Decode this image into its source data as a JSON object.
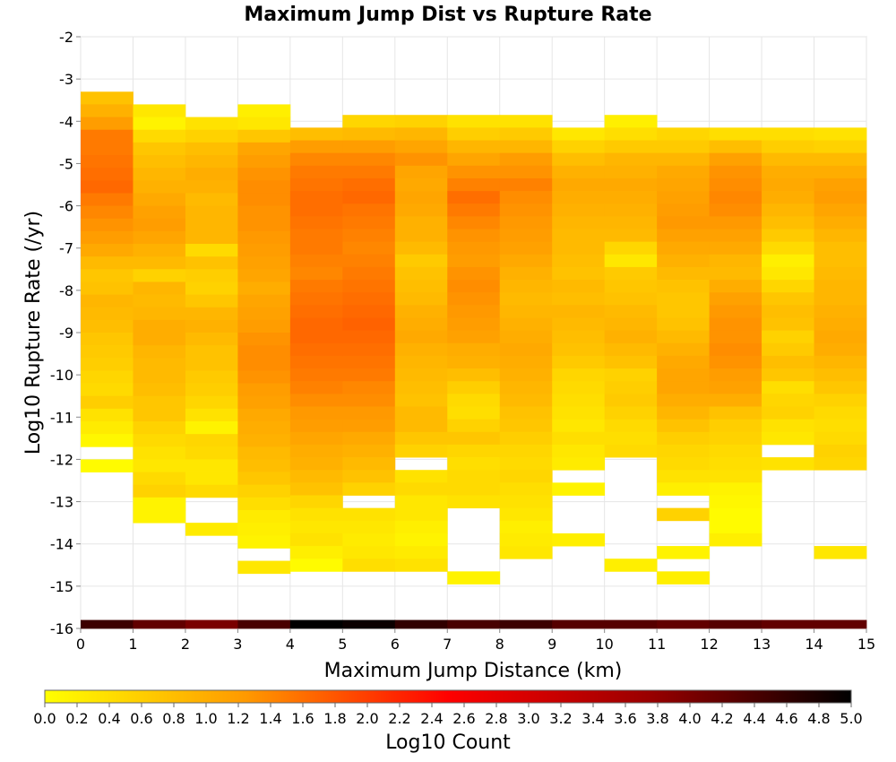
{
  "chart_data": {
    "type": "heatmap",
    "title": "Maximum Jump Dist vs Rupture Rate",
    "xlabel": "Maximum Jump Distance (km)",
    "ylabel": "Log10 Rupture Rate (/yr)",
    "colorbar_label": "Log10 Count",
    "xlim": [
      0,
      15
    ],
    "ylim": [
      -16,
      -2
    ],
    "x_ticks": [
      "0",
      "1",
      "2",
      "3",
      "4",
      "5",
      "6",
      "7",
      "8",
      "9",
      "10",
      "11",
      "12",
      "13",
      "14",
      "15"
    ],
    "y_ticks": [
      "-2",
      "-3",
      "-4",
      "-5",
      "-6",
      "-7",
      "-8",
      "-9",
      "-10",
      "-11",
      "-12",
      "-13",
      "-14",
      "-15",
      "-16"
    ],
    "colorbar_ticks": [
      "0.0",
      "0.2",
      "0.4",
      "0.6",
      "0.8",
      "1.0",
      "1.2",
      "1.4",
      "1.6",
      "1.8",
      "2.0",
      "2.2",
      "2.4",
      "2.6",
      "2.8",
      "3.0",
      "3.2",
      "3.4",
      "3.6",
      "3.8",
      "4.0",
      "4.2",
      "4.4",
      "4.6",
      "4.8",
      "5.0"
    ],
    "color_range": [
      0,
      5
    ],
    "colormap": [
      "#ffff00",
      "#ff9900",
      "#ff0000",
      "#990000",
      "#000000"
    ],
    "x_bin_width_km": 1,
    "y_bin_width": 0.3,
    "columns": [
      {
        "x0": 0,
        "y_top": -3.3,
        "values": [
          0.75,
          0.95,
          1.2,
          1.5,
          1.5,
          1.55,
          1.6,
          1.65,
          1.5,
          1.4,
          1.3,
          1.2,
          1.05,
          0.85,
          0.7,
          0.75,
          0.9,
          0.85,
          0.8,
          0.7,
          0.65,
          0.6,
          0.5,
          0.45,
          0.6,
          0.35,
          0.25,
          0.1,
          null,
          0.05,
          null,
          null,
          null,
          null,
          null,
          null,
          null,
          null,
          null,
          null,
          null,
          null,
          4.5
        ]
      },
      {
        "x0": 1,
        "y_top": -3.6,
        "values": [
          0.3,
          0.15,
          0.45,
          0.7,
          0.8,
          0.9,
          0.95,
          1.05,
          1.15,
          1.2,
          1.1,
          0.95,
          0.85,
          0.55,
          0.9,
          0.85,
          0.9,
          1.0,
          1.0,
          0.9,
          0.85,
          0.85,
          0.8,
          0.7,
          0.7,
          0.55,
          0.45,
          0.35,
          0.3,
          0.45,
          0.55,
          0.15,
          0.15,
          null,
          null,
          null,
          null,
          null,
          null,
          null,
          null,
          4.2
        ]
      },
      {
        "x0": 2,
        "y_top": -3.9,
        "values": [
          0.35,
          0.55,
          0.8,
          0.9,
          1.0,
          0.95,
          0.85,
          0.9,
          0.9,
          0.9,
          0.45,
          0.75,
          0.6,
          0.55,
          0.7,
          0.9,
          0.95,
          0.85,
          0.75,
          0.75,
          0.65,
          0.6,
          0.5,
          0.35,
          0.15,
          0.5,
          0.45,
          0.3,
          0.3,
          0.45,
          null,
          null,
          0.25,
          null,
          null,
          null,
          null,
          null,
          null,
          4.0
        ]
      },
      {
        "x0": 3,
        "y_top": -3.6,
        "values": [
          0.2,
          0.3,
          0.7,
          1.1,
          1.2,
          1.3,
          1.35,
          1.35,
          1.3,
          1.3,
          1.25,
          1.2,
          1.15,
          1.1,
          1.0,
          1.1,
          1.15,
          1.2,
          1.3,
          1.35,
          1.35,
          1.3,
          1.2,
          1.15,
          1.05,
          1.0,
          0.95,
          0.85,
          0.8,
          0.7,
          0.55,
          0.4,
          0.25,
          0.2,
          0.15,
          null,
          0.3,
          null,
          4.4
        ]
      },
      {
        "x0": 4,
        "y_top": -4.15,
        "values": [
          0.8,
          1.2,
          1.4,
          1.5,
          1.55,
          1.6,
          1.6,
          1.55,
          1.5,
          1.5,
          1.45,
          1.4,
          1.5,
          1.55,
          1.6,
          1.65,
          1.65,
          1.6,
          1.55,
          1.5,
          1.45,
          1.35,
          1.25,
          1.2,
          1.1,
          1.0,
          0.95,
          0.85,
          0.75,
          0.5,
          0.35,
          0.3,
          0.35,
          0.2,
          0.05,
          5.0
        ]
      },
      {
        "x0": 5,
        "y_top": -3.85,
        "values": [
          0.5,
          0.85,
          1.2,
          1.4,
          1.5,
          1.6,
          1.65,
          1.55,
          1.5,
          1.45,
          1.4,
          1.45,
          1.5,
          1.55,
          1.6,
          1.65,
          1.7,
          1.65,
          1.6,
          1.55,
          1.5,
          1.4,
          1.35,
          1.25,
          1.2,
          1.05,
          0.95,
          0.85,
          0.75,
          0.55,
          null,
          0.35,
          0.3,
          0.25,
          0.3,
          0.4,
          4.9
        ]
      },
      {
        "x0": 6,
        "y_top": -3.85,
        "values": [
          0.55,
          0.9,
          1.1,
          1.3,
          1.1,
          1.05,
          1.1,
          1.05,
          0.95,
          0.95,
          0.85,
          0.65,
          0.75,
          0.8,
          0.85,
          0.95,
          1.0,
          1.05,
          0.95,
          0.9,
          0.85,
          0.8,
          0.75,
          0.85,
          0.85,
          0.7,
          0.55,
          null,
          0.35,
          0.45,
          0.3,
          0.3,
          0.2,
          0.15,
          0.25,
          0.35,
          null,
          null,
          null,
          null,
          null,
          4.6
        ]
      },
      {
        "x0": 7,
        "y_top": -3.85,
        "values": [
          0.35,
          0.6,
          0.9,
          1.1,
          1.3,
          1.45,
          1.6,
          1.5,
          1.4,
          1.3,
          1.25,
          1.2,
          1.3,
          1.35,
          1.3,
          1.25,
          1.2,
          1.15,
          1.0,
          0.95,
          0.8,
          0.6,
          0.45,
          0.4,
          0.55,
          0.7,
          0.5,
          0.4,
          0.45,
          0.45,
          0.35,
          null,
          null,
          null,
          null,
          null,
          0.15,
          null,
          4.4
        ]
      },
      {
        "x0": 8,
        "y_top": -3.85,
        "values": [
          0.35,
          0.65,
          0.9,
          1.2,
          1.3,
          1.45,
          1.35,
          1.3,
          1.25,
          1.2,
          1.15,
          1.05,
          0.95,
          0.9,
          0.85,
          0.9,
          0.95,
          1.0,
          1.05,
          1.0,
          0.95,
          0.9,
          0.85,
          0.75,
          0.7,
          0.6,
          0.5,
          0.45,
          0.5,
          0.4,
          0.35,
          0.3,
          0.2,
          0.25,
          0.3,
          null,
          null,
          null,
          null,
          4.5
        ]
      },
      {
        "x0": 9,
        "y_top": -4.15,
        "values": [
          0.3,
          0.55,
          0.8,
          0.95,
          1.05,
          1.0,
          0.95,
          0.9,
          0.85,
          0.85,
          0.8,
          0.75,
          0.85,
          0.8,
          0.9,
          0.85,
          0.8,
          0.75,
          0.65,
          0.5,
          0.45,
          0.4,
          0.35,
          0.3,
          0.4,
          0.3,
          0.25,
          null,
          0.15,
          null,
          null,
          null,
          0.2,
          null,
          null,
          null,
          null,
          4.3
        ]
      },
      {
        "x0": 10,
        "y_top": -3.85,
        "values": [
          0.2,
          0.4,
          0.65,
          0.9,
          0.95,
          1.05,
          1.0,
          0.95,
          0.9,
          0.85,
          0.5,
          0.3,
          0.65,
          0.7,
          0.75,
          0.85,
          0.9,
          0.95,
          0.85,
          0.75,
          0.55,
          0.6,
          0.65,
          0.55,
          0.45,
          0.4,
          0.45,
          null,
          null,
          null,
          null,
          null,
          null,
          null,
          null,
          0.2,
          null,
          null,
          null,
          4.3
        ]
      },
      {
        "x0": 11,
        "y_top": -4.15,
        "values": [
          0.5,
          0.65,
          0.9,
          1.05,
          1.1,
          1.15,
          1.2,
          1.25,
          1.15,
          1.05,
          0.95,
          0.85,
          0.75,
          0.7,
          0.7,
          0.75,
          0.85,
          0.95,
          1.05,
          1.1,
          1.1,
          1.0,
          0.9,
          0.75,
          0.6,
          0.5,
          0.45,
          0.35,
          0.2,
          null,
          0.55,
          null,
          null,
          0.15,
          null,
          0.2,
          null,
          null,
          null,
          4.2
        ]
      },
      {
        "x0": 12,
        "y_top": -4.15,
        "values": [
          0.4,
          0.8,
          1.15,
          1.3,
          1.35,
          1.4,
          1.35,
          1.25,
          1.15,
          1.05,
          0.9,
          0.85,
          1.0,
          1.15,
          1.25,
          1.3,
          1.3,
          1.35,
          1.3,
          1.2,
          1.15,
          1.0,
          0.75,
          0.6,
          0.55,
          0.45,
          0.4,
          0.35,
          0.15,
          0.1,
          0.05,
          0.05,
          0.2,
          null,
          null,
          null,
          null,
          null,
          4.3
        ]
      },
      {
        "x0": 13,
        "y_top": -4.15,
        "values": [
          0.4,
          0.6,
          0.85,
          1.0,
          1.05,
          1.0,
          0.9,
          0.8,
          0.65,
          0.45,
          0.2,
          0.3,
          0.5,
          0.7,
          0.8,
          0.75,
          0.55,
          0.65,
          0.8,
          0.7,
          0.4,
          0.5,
          0.55,
          0.35,
          0.3,
          null,
          0.35,
          null,
          null,
          null,
          null,
          null,
          null,
          null,
          null,
          null,
          4.2
        ]
      },
      {
        "x0": 14,
        "y_top": -4.15,
        "values": [
          0.35,
          0.55,
          0.85,
          1.0,
          1.15,
          1.2,
          1.1,
          1.0,
          0.9,
          0.8,
          0.8,
          0.85,
          0.9,
          0.9,
          0.95,
          1.0,
          1.05,
          1.0,
          0.9,
          0.8,
          0.7,
          0.55,
          0.45,
          0.4,
          0.45,
          0.55,
          0.5,
          null,
          null,
          null,
          null,
          null,
          null,
          0.3,
          null,
          null,
          4.2
        ]
      }
    ]
  }
}
